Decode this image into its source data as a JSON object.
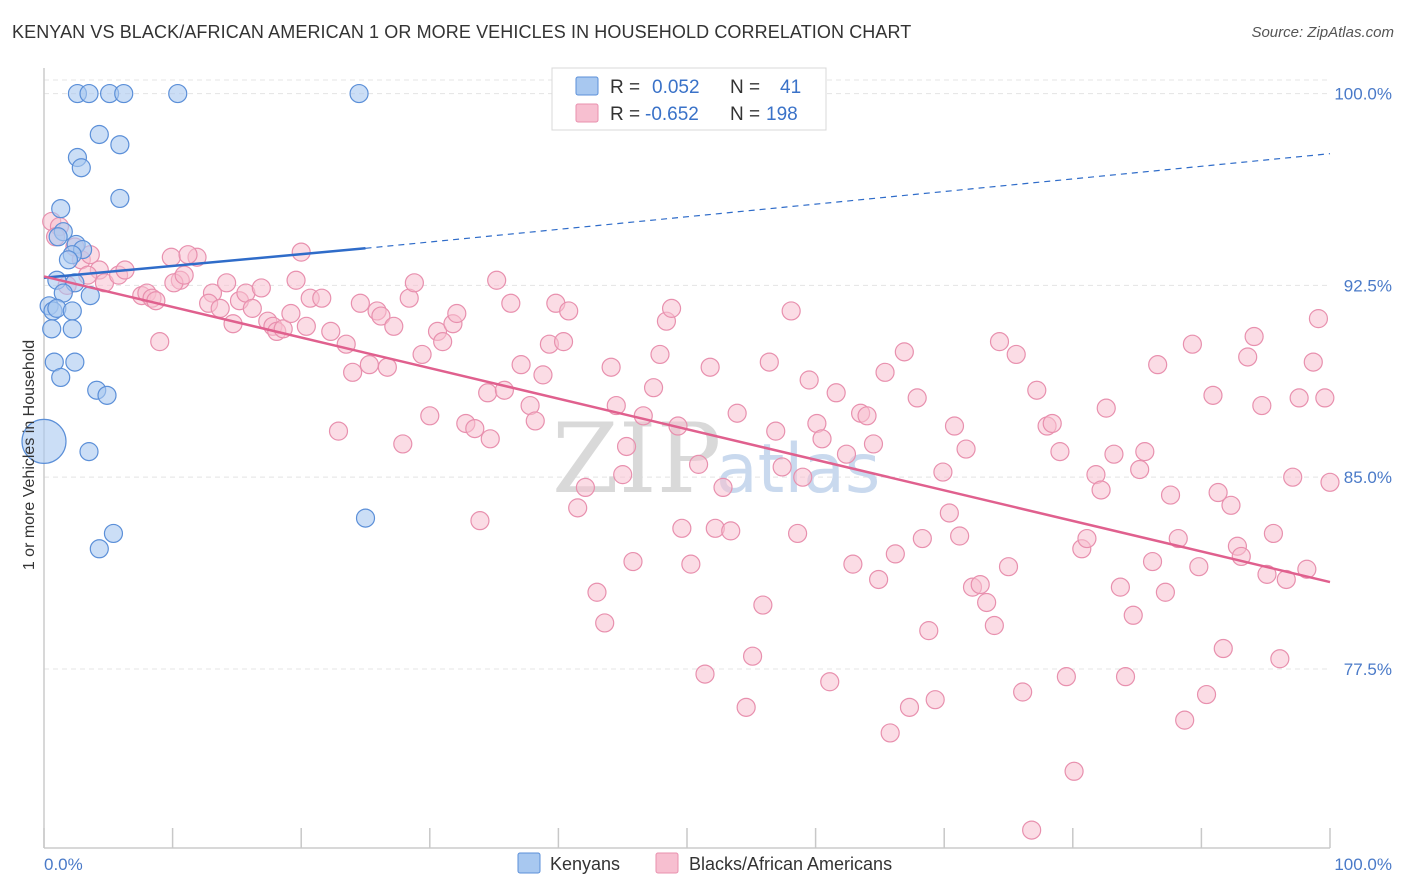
{
  "header": {
    "title": "KENYAN VS BLACK/AFRICAN AMERICAN 1 OR MORE VEHICLES IN HOUSEHOLD CORRELATION CHART",
    "source": "Source: ZipAtlas.com"
  },
  "watermark": {
    "zip": "ZIP",
    "atlas": "atlas"
  },
  "colors": {
    "blue_fill": "#a8c8f0",
    "blue_stroke": "#5b8fd8",
    "blue_line": "#2f6cc9",
    "pink_fill": "#f7bfd0",
    "pink_stroke": "#e890ae",
    "pink_line": "#e0608e",
    "tick_label": "#4a7ac8",
    "grid": "#e4e4e4"
  },
  "legend": {
    "rows": [
      {
        "r_label": "R =",
        "r_value": "0.052",
        "n_label": "N =",
        "n_value": "41"
      },
      {
        "r_label": "R =",
        "r_value": "-0.652",
        "n_label": "N =",
        "n_value": "198"
      }
    ]
  },
  "bottom_legend": {
    "items": [
      "Kenyans",
      "Blacks/African Americans"
    ]
  },
  "chart_data": {
    "type": "scatter",
    "title": "KENYAN VS BLACK/AFRICAN AMERICAN 1 OR MORE VEHICLES IN HOUSEHOLD CORRELATION CHART",
    "xlabel": "",
    "ylabel": "1 or more Vehicles in Household",
    "xlim": [
      0,
      100
    ],
    "ylim": [
      70.5,
      101
    ],
    "x_tick_labels": [
      "0.0%",
      "100.0%"
    ],
    "y_ticks": [
      77.5,
      85.0,
      92.5,
      100.0
    ],
    "y_tick_labels": [
      "77.5%",
      "85.0%",
      "92.5%",
      "100.0%"
    ],
    "grid": true,
    "legend_position": "top-center",
    "series": [
      {
        "name": "Kenyans",
        "R": 0.052,
        "N": 41,
        "trend": {
          "x": [
            0,
            25
          ],
          "y": [
            92.8,
            93.95
          ],
          "dashed_to": [
            100,
            97.65
          ]
        },
        "points": [
          [
            2.6,
            100.0,
            9
          ],
          [
            3.5,
            100.0,
            9
          ],
          [
            5.1,
            100.0,
            9
          ],
          [
            6.2,
            100.0,
            9
          ],
          [
            10.4,
            100.0,
            9
          ],
          [
            24.5,
            100.0,
            9
          ],
          [
            4.3,
            98.4,
            9
          ],
          [
            5.9,
            98.0,
            9
          ],
          [
            2.6,
            97.5,
            9
          ],
          [
            2.9,
            97.1,
            9
          ],
          [
            5.9,
            95.9,
            9
          ],
          [
            1.3,
            95.5,
            9
          ],
          [
            1.5,
            94.6,
            9
          ],
          [
            1.1,
            94.4,
            9
          ],
          [
            2.5,
            94.1,
            9
          ],
          [
            3.0,
            93.9,
            9
          ],
          [
            2.2,
            93.7,
            9
          ],
          [
            1.9,
            93.5,
            9
          ],
          [
            1.0,
            92.7,
            9
          ],
          [
            2.4,
            92.6,
            9
          ],
          [
            1.5,
            92.2,
            9
          ],
          [
            3.6,
            92.1,
            9
          ],
          [
            0.4,
            91.7,
            9
          ],
          [
            0.7,
            91.5,
            9
          ],
          [
            1.0,
            91.6,
            9
          ],
          [
            2.2,
            91.5,
            9
          ],
          [
            0.6,
            90.8,
            9
          ],
          [
            2.2,
            90.8,
            9
          ],
          [
            0.8,
            89.5,
            9
          ],
          [
            2.4,
            89.5,
            9
          ],
          [
            1.3,
            88.9,
            9
          ],
          [
            4.1,
            88.4,
            9
          ],
          [
            4.9,
            88.2,
            9
          ],
          [
            0.0,
            86.4,
            22
          ],
          [
            3.5,
            86.0,
            9
          ],
          [
            25.0,
            83.4,
            9
          ],
          [
            5.4,
            82.8,
            9
          ],
          [
            4.3,
            82.2,
            9
          ]
        ]
      },
      {
        "name": "Blacks/African Americans",
        "R": -0.652,
        "N": 198,
        "trend": {
          "x": [
            0,
            100
          ],
          "y": [
            92.85,
            80.9
          ]
        },
        "points": [
          [
            0.6,
            95.0
          ],
          [
            1.2,
            94.8
          ],
          [
            0.9,
            94.4
          ],
          [
            2.4,
            94.0
          ],
          [
            2.9,
            93.5
          ],
          [
            3.6,
            93.7
          ],
          [
            4.3,
            93.1
          ],
          [
            3.4,
            92.9
          ],
          [
            4.7,
            92.6
          ],
          [
            5.8,
            92.9
          ],
          [
            7.6,
            92.1
          ],
          [
            8.0,
            92.2
          ],
          [
            8.4,
            92.0
          ],
          [
            8.7,
            91.9
          ],
          [
            9.9,
            93.6
          ],
          [
            10.6,
            92.7
          ],
          [
            10.1,
            92.6
          ],
          [
            10.9,
            92.9
          ],
          [
            11.9,
            93.6
          ],
          [
            11.2,
            93.7
          ],
          [
            13.1,
            92.2
          ],
          [
            12.8,
            91.8
          ],
          [
            13.7,
            91.6
          ],
          [
            14.2,
            92.6
          ],
          [
            15.2,
            91.9
          ],
          [
            15.7,
            92.2
          ],
          [
            16.2,
            91.6
          ],
          [
            16.9,
            92.4
          ],
          [
            17.4,
            91.1
          ],
          [
            17.8,
            90.9
          ],
          [
            18.1,
            90.7
          ],
          [
            18.6,
            90.8
          ],
          [
            19.2,
            91.4
          ],
          [
            19.6,
            92.7
          ],
          [
            20.0,
            93.8
          ],
          [
            20.7,
            92.0
          ],
          [
            20.4,
            90.9
          ],
          [
            21.6,
            92.0
          ],
          [
            22.3,
            90.7
          ],
          [
            23.5,
            90.2
          ],
          [
            24.0,
            89.1
          ],
          [
            24.6,
            91.8
          ],
          [
            25.3,
            89.4
          ],
          [
            25.9,
            91.5
          ],
          [
            26.2,
            91.3
          ],
          [
            26.7,
            89.3
          ],
          [
            27.2,
            90.9
          ],
          [
            28.4,
            92.0
          ],
          [
            27.9,
            86.3
          ],
          [
            29.4,
            89.8
          ],
          [
            30.0,
            87.4
          ],
          [
            30.6,
            90.7
          ],
          [
            31.0,
            90.3
          ],
          [
            31.8,
            91.0
          ],
          [
            32.1,
            91.4
          ],
          [
            32.8,
            87.1
          ],
          [
            33.5,
            86.9
          ],
          [
            34.5,
            88.3
          ],
          [
            34.7,
            86.5
          ],
          [
            35.2,
            92.7
          ],
          [
            35.8,
            88.4
          ],
          [
            36.3,
            91.8
          ],
          [
            37.1,
            89.4
          ],
          [
            37.8,
            87.8
          ],
          [
            38.2,
            87.2
          ],
          [
            38.8,
            89.0
          ],
          [
            39.3,
            90.2
          ],
          [
            39.8,
            91.8
          ],
          [
            40.4,
            90.3
          ],
          [
            40.8,
            91.5
          ],
          [
            41.5,
            83.8
          ],
          [
            42.1,
            84.6
          ],
          [
            43.0,
            80.5
          ],
          [
            43.6,
            79.3
          ],
          [
            44.1,
            89.3
          ],
          [
            44.5,
            87.8
          ],
          [
            45.0,
            85.1
          ],
          [
            45.3,
            86.2
          ],
          [
            45.8,
            81.7
          ],
          [
            46.6,
            87.4
          ],
          [
            47.4,
            88.5
          ],
          [
            47.9,
            89.8
          ],
          [
            48.4,
            91.1
          ],
          [
            48.8,
            91.6
          ],
          [
            49.3,
            87.0
          ],
          [
            49.6,
            83.0
          ],
          [
            50.3,
            81.6
          ],
          [
            50.9,
            85.5
          ],
          [
            51.4,
            77.3
          ],
          [
            51.8,
            89.3
          ],
          [
            52.2,
            83.0
          ],
          [
            52.8,
            84.6
          ],
          [
            53.4,
            82.9
          ],
          [
            53.9,
            87.5
          ],
          [
            54.6,
            76.0
          ],
          [
            55.1,
            78.0
          ],
          [
            55.9,
            80.0
          ],
          [
            56.4,
            89.5
          ],
          [
            56.9,
            86.8
          ],
          [
            57.4,
            85.4
          ],
          [
            58.1,
            91.5
          ],
          [
            58.6,
            82.8
          ],
          [
            59.0,
            85.0
          ],
          [
            59.5,
            88.8
          ],
          [
            60.1,
            87.1
          ],
          [
            60.5,
            86.5
          ],
          [
            61.1,
            77.0
          ],
          [
            61.6,
            88.3
          ],
          [
            62.4,
            85.9
          ],
          [
            62.9,
            81.6
          ],
          [
            63.5,
            87.5
          ],
          [
            64.0,
            87.4
          ],
          [
            64.5,
            86.3
          ],
          [
            64.9,
            81.0
          ],
          [
            65.4,
            89.1
          ],
          [
            65.8,
            75.0
          ],
          [
            66.2,
            82.0
          ],
          [
            66.9,
            89.9
          ],
          [
            67.3,
            76.0
          ],
          [
            67.9,
            88.1
          ],
          [
            68.3,
            82.6
          ],
          [
            68.8,
            79.0
          ],
          [
            69.3,
            76.3
          ],
          [
            69.9,
            85.2
          ],
          [
            70.4,
            83.6
          ],
          [
            70.8,
            87.0
          ],
          [
            71.2,
            82.7
          ],
          [
            71.7,
            86.1
          ],
          [
            72.2,
            80.7
          ],
          [
            72.8,
            80.8
          ],
          [
            73.3,
            80.1
          ],
          [
            73.9,
            79.2
          ],
          [
            74.3,
            90.3
          ],
          [
            75.0,
            81.5
          ],
          [
            75.6,
            89.8
          ],
          [
            76.1,
            76.6
          ],
          [
            76.8,
            71.2
          ],
          [
            77.2,
            88.4
          ],
          [
            78.0,
            87.0
          ],
          [
            78.4,
            87.1
          ],
          [
            79.0,
            86.0
          ],
          [
            79.5,
            77.2
          ],
          [
            80.1,
            73.5
          ],
          [
            80.7,
            82.2
          ],
          [
            81.1,
            82.6
          ],
          [
            81.8,
            85.1
          ],
          [
            82.2,
            84.5
          ],
          [
            82.6,
            87.7
          ],
          [
            83.2,
            85.9
          ],
          [
            83.7,
            80.7
          ],
          [
            84.1,
            77.2
          ],
          [
            84.7,
            79.6
          ],
          [
            85.2,
            85.3
          ],
          [
            85.6,
            86.0
          ],
          [
            86.2,
            81.7
          ],
          [
            86.6,
            89.4
          ],
          [
            87.2,
            80.5
          ],
          [
            87.6,
            84.3
          ],
          [
            88.2,
            82.6
          ],
          [
            88.7,
            75.5
          ],
          [
            89.3,
            90.2
          ],
          [
            89.8,
            81.5
          ],
          [
            90.4,
            76.5
          ],
          [
            90.9,
            88.2
          ],
          [
            91.3,
            84.4
          ],
          [
            91.7,
            78.3
          ],
          [
            92.3,
            83.9
          ],
          [
            92.8,
            82.3
          ],
          [
            93.1,
            81.9
          ],
          [
            93.6,
            89.7
          ],
          [
            94.1,
            90.5
          ],
          [
            94.7,
            87.8
          ],
          [
            95.1,
            81.2
          ],
          [
            95.6,
            82.8
          ],
          [
            96.1,
            77.9
          ],
          [
            96.6,
            81.0
          ],
          [
            97.1,
            85.0
          ],
          [
            97.6,
            88.1
          ],
          [
            98.2,
            81.4
          ],
          [
            98.7,
            89.5
          ],
          [
            99.1,
            91.2
          ],
          [
            99.6,
            88.1
          ],
          [
            100.0,
            84.8
          ],
          [
            1.8,
            92.5
          ],
          [
            6.3,
            93.1
          ],
          [
            9.0,
            90.3
          ],
          [
            14.7,
            91.0
          ],
          [
            22.9,
            86.8
          ],
          [
            28.8,
            92.6
          ],
          [
            33.9,
            83.3
          ]
        ]
      }
    ]
  },
  "axis": {
    "y_title": "1 or more Vehicles in Household",
    "x_left": "0.0%",
    "x_right": "100.0%"
  }
}
